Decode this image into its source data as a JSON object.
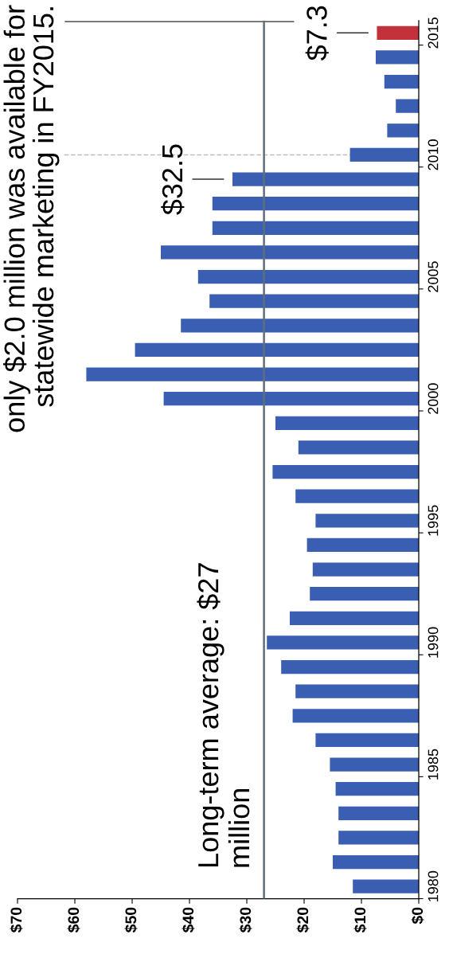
{
  "chart_data": {
    "type": "bar",
    "orientation": "horizontal",
    "categories": [
      "2015",
      null,
      null,
      null,
      null,
      "2010",
      null,
      null,
      null,
      null,
      "2005",
      null,
      null,
      null,
      null,
      "2000",
      null,
      null,
      null,
      null,
      "1995",
      null,
      null,
      null,
      null,
      "1990",
      null,
      null,
      null,
      null,
      "1985",
      null,
      null,
      null,
      null,
      "1980"
    ],
    "values": [
      7.3,
      7.5,
      6.0,
      4.0,
      5.5,
      12.0,
      32.5,
      36.0,
      36.0,
      45.0,
      38.5,
      36.5,
      41.5,
      49.5,
      58.0,
      44.5,
      25.0,
      21.0,
      25.5,
      21.5,
      18.0,
      19.5,
      18.5,
      19.0,
      22.5,
      26.5,
      24.0,
      21.5,
      22.0,
      18.0,
      15.5,
      14.5,
      14.0,
      14.0,
      15.0,
      11.5
    ],
    "colors": [
      "#c3323a",
      "#3a5eb2",
      "#3a5eb2",
      "#3a5eb2",
      "#3a5eb2",
      "#3a5eb2",
      "#3a5eb2",
      "#3a5eb2",
      "#3a5eb2",
      "#3a5eb2",
      "#3a5eb2",
      "#3a5eb2",
      "#3a5eb2",
      "#3a5eb2",
      "#3a5eb2",
      "#3a5eb2",
      "#3a5eb2",
      "#3a5eb2",
      "#3a5eb2",
      "#3a5eb2",
      "#3a5eb2",
      "#3a5eb2",
      "#3a5eb2",
      "#3a5eb2",
      "#3a5eb2",
      "#3a5eb2",
      "#3a5eb2",
      "#3a5eb2",
      "#3a5eb2",
      "#3a5eb2",
      "#3a5eb2",
      "#3a5eb2",
      "#3a5eb2",
      "#3a5eb2",
      "#3a5eb2",
      "#3a5eb2"
    ],
    "value_labels": [
      "$7.3",
      null,
      null,
      null,
      null,
      null,
      "$32.5",
      null,
      null,
      null,
      null,
      null,
      null,
      null,
      null,
      null,
      null,
      null,
      null,
      null,
      null,
      null,
      null,
      null,
      null,
      null,
      null,
      null,
      null,
      null,
      null,
      null,
      null,
      null,
      null,
      null
    ],
    "xlim": [
      70,
      0
    ],
    "xticks": [
      {
        "value": 70,
        "label": "$70"
      },
      {
        "value": 60,
        "label": "$60"
      },
      {
        "value": 50,
        "label": "$50"
      },
      {
        "value": 40,
        "label": "$40"
      },
      {
        "value": 30,
        "label": "$30"
      },
      {
        "value": 20,
        "label": "$20"
      },
      {
        "value": 10,
        "label": "$10"
      },
      {
        "value": 0,
        "label": "$0"
      }
    ],
    "ref_lines": [
      {
        "axis": "x",
        "value": 27,
        "label": "Long-term average: $27\nmillion",
        "color": "#5f6e7d"
      },
      {
        "axis": "y",
        "value": "2010",
        "color": "#bdbdbd",
        "line_style": "dashed"
      }
    ],
    "annotations": [
      "only $2.0 million was available for\nstatewide marketing in FY2015."
    ]
  }
}
